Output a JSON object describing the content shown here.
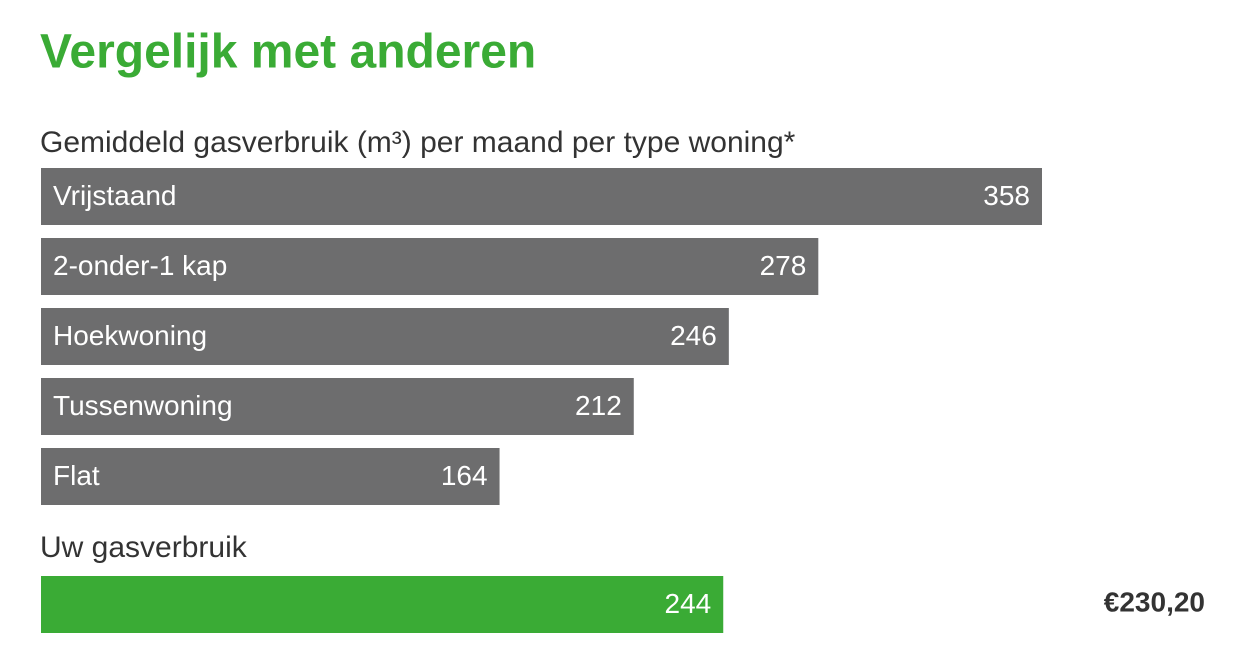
{
  "title": "Vergelijk met anderen",
  "chart_data": [
    {
      "type": "bar",
      "orientation": "horizontal",
      "title": "Gemiddeld gasverbruik (m³) per maand per type woning*",
      "categories": [
        "Vrijstaand",
        "2-onder-1 kap",
        "Hoekwoning",
        "Tussenwoning",
        "Flat"
      ],
      "values": [
        358,
        278,
        246,
        212,
        164
      ],
      "color": "#6d6d6e"
    },
    {
      "type": "bar",
      "orientation": "horizontal",
      "title": "Uw gasverbruik",
      "values": [
        244
      ],
      "color": "#3aab35",
      "annotation": "€230,20"
    }
  ]
}
